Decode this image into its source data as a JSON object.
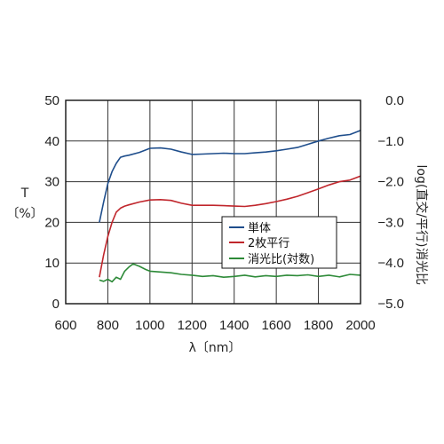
{
  "chart_data": {
    "type": "line",
    "xlabel": "λ〔nm〕",
    "ylabel": "T",
    "ylabel_unit": "〔%〕",
    "y2label": "log(直交/平行)",
    "y2label_prefix": "消光比",
    "xlim": [
      600,
      2000
    ],
    "ylim": [
      0,
      50
    ],
    "y2lim": [
      -5.0,
      0.0
    ],
    "grid": true,
    "legend_position": "center-right",
    "xticks": [
      "600",
      "800",
      "1000",
      "1200",
      "1400",
      "1600",
      "1800",
      "2000"
    ],
    "yticks": [
      "0",
      "10",
      "20",
      "30",
      "40",
      "50"
    ],
    "y2ticks": [
      "−5.0",
      "−4.0",
      "−3.0",
      "−2.0",
      "−1.0",
      "0.0"
    ],
    "series": [
      {
        "name": "単体",
        "color": "#1f4e8c",
        "axis": "left",
        "x": [
          760,
          780,
          800,
          820,
          840,
          860,
          880,
          900,
          950,
          1000,
          1050,
          1100,
          1150,
          1200,
          1250,
          1300,
          1350,
          1400,
          1450,
          1500,
          1550,
          1600,
          1650,
          1700,
          1750,
          1800,
          1850,
          1900,
          1950,
          2000
        ],
        "y": [
          20,
          25,
          29.5,
          32.5,
          34.5,
          36,
          36.3,
          36.5,
          37.2,
          38.2,
          38.3,
          38.0,
          37.3,
          36.7,
          36.8,
          36.9,
          37.0,
          36.9,
          36.9,
          37.1,
          37.3,
          37.6,
          38.0,
          38.4,
          39.2,
          40.0,
          40.7,
          41.3,
          41.6,
          42.6
        ]
      },
      {
        "name": "2枚平行",
        "color": "#c0262c",
        "axis": "left",
        "x": [
          760,
          780,
          800,
          820,
          840,
          860,
          880,
          900,
          950,
          1000,
          1050,
          1100,
          1150,
          1200,
          1250,
          1300,
          1350,
          1400,
          1450,
          1500,
          1550,
          1600,
          1650,
          1700,
          1750,
          1800,
          1850,
          1900,
          1950,
          2000
        ],
        "y": [
          6.5,
          12,
          16.5,
          20,
          22.5,
          23.5,
          24,
          24.3,
          25.0,
          25.5,
          25.6,
          25.4,
          24.7,
          24.2,
          24.2,
          24.2,
          24.1,
          24.0,
          23.9,
          24.2,
          24.6,
          25.1,
          25.7,
          26.4,
          27.3,
          28.2,
          29.2,
          30.0,
          30.4,
          31.4
        ]
      },
      {
        "name": "消光比(対数)",
        "color": "#2d8a38",
        "axis": "right",
        "x": [
          760,
          780,
          800,
          820,
          840,
          860,
          880,
          900,
          920,
          950,
          980,
          1000,
          1050,
          1100,
          1150,
          1200,
          1250,
          1300,
          1350,
          1400,
          1450,
          1500,
          1550,
          1600,
          1650,
          1700,
          1750,
          1800,
          1850,
          1900,
          1950,
          2000
        ],
        "y": [
          -4.42,
          -4.45,
          -4.4,
          -4.46,
          -4.35,
          -4.4,
          -4.2,
          -4.1,
          -4.02,
          -4.08,
          -4.16,
          -4.2,
          -4.22,
          -4.24,
          -4.28,
          -4.3,
          -4.33,
          -4.31,
          -4.35,
          -4.33,
          -4.3,
          -4.34,
          -4.31,
          -4.33,
          -4.3,
          -4.31,
          -4.29,
          -4.33,
          -4.3,
          -4.34,
          -4.28,
          -4.3
        ]
      }
    ]
  }
}
